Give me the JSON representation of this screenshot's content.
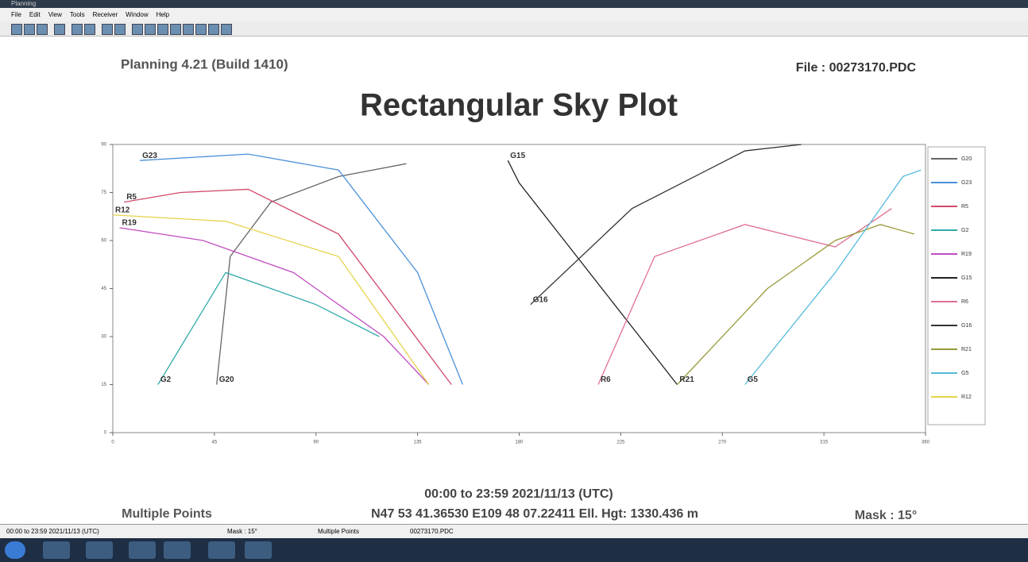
{
  "window": {
    "title": "Planning",
    "menu": [
      "File",
      "Edit",
      "View",
      "Tools",
      "Receiver",
      "Window",
      "Help"
    ]
  },
  "header": {
    "version": "Planning 4.21 (Build 1410)",
    "file": "File : 00273170.PDC"
  },
  "footer": {
    "time": "00:00 to 23:59   2021/11/13 (UTC)",
    "points": "Multiple Points",
    "coords": "N47 53 41.36530 E109 48 07.22411 Ell. Hgt: 1330.436 m",
    "mask": "Mask : 15°"
  },
  "status": [
    "00:00 to 23:59  2021/11/13 (UTC)",
    "Mask : 15°",
    "Multiple Points",
    "00273170.PDC"
  ],
  "chart_data": {
    "type": "line",
    "title": "Rectangular Sky Plot",
    "xlim": [
      0,
      360
    ],
    "ylim": [
      0,
      90
    ],
    "xticks": [
      0,
      45,
      90,
      135,
      180,
      225,
      270,
      315,
      360
    ],
    "yticks": [
      0,
      15,
      30,
      45,
      60,
      75,
      90
    ],
    "series": [
      {
        "name": "G20",
        "color": "#666666",
        "x": [
          46,
          52,
          70,
          100,
          130
        ],
        "values": [
          15,
          55,
          72,
          80,
          84
        ]
      },
      {
        "name": "G23",
        "color": "#4a90d9",
        "x": [
          12,
          60,
          100,
          135,
          155
        ],
        "values": [
          85,
          87,
          82,
          50,
          15
        ]
      },
      {
        "name": "R5",
        "color": "#d04a6a",
        "x": [
          5,
          30,
          60,
          100,
          150
        ],
        "values": [
          72,
          75,
          76,
          62,
          15
        ]
      },
      {
        "name": "G2",
        "color": "#33aaaa",
        "x": [
          20,
          50,
          90,
          118
        ],
        "values": [
          15,
          50,
          40,
          30
        ]
      },
      {
        "name": "R19",
        "color": "#c04cc0",
        "x": [
          3,
          40,
          80,
          120,
          140
        ],
        "values": [
          64,
          60,
          50,
          30,
          15
        ]
      },
      {
        "name": "G15",
        "color": "#222222",
        "x": [
          175,
          180,
          200,
          250
        ],
        "values": [
          85,
          78,
          60,
          15
        ]
      },
      {
        "name": "R6",
        "color": "#e07090",
        "x": [
          215,
          240,
          280,
          320,
          345
        ],
        "values": [
          15,
          55,
          65,
          58,
          70
        ]
      },
      {
        "name": "G16",
        "color": "#333333",
        "x": [
          185,
          230,
          280,
          305
        ],
        "values": [
          40,
          70,
          88,
          90
        ]
      },
      {
        "name": "R21",
        "color": "#9a9a3a",
        "x": [
          250,
          290,
          320,
          340,
          355
        ],
        "values": [
          15,
          45,
          60,
          65,
          62
        ]
      },
      {
        "name": "G5",
        "color": "#55bbdd",
        "x": [
          280,
          320,
          350,
          358
        ],
        "values": [
          15,
          50,
          80,
          82
        ]
      },
      {
        "name": "R12",
        "color": "#e6d24a",
        "x": [
          0,
          50,
          100,
          140
        ],
        "values": [
          68,
          66,
          55,
          15
        ]
      }
    ]
  }
}
